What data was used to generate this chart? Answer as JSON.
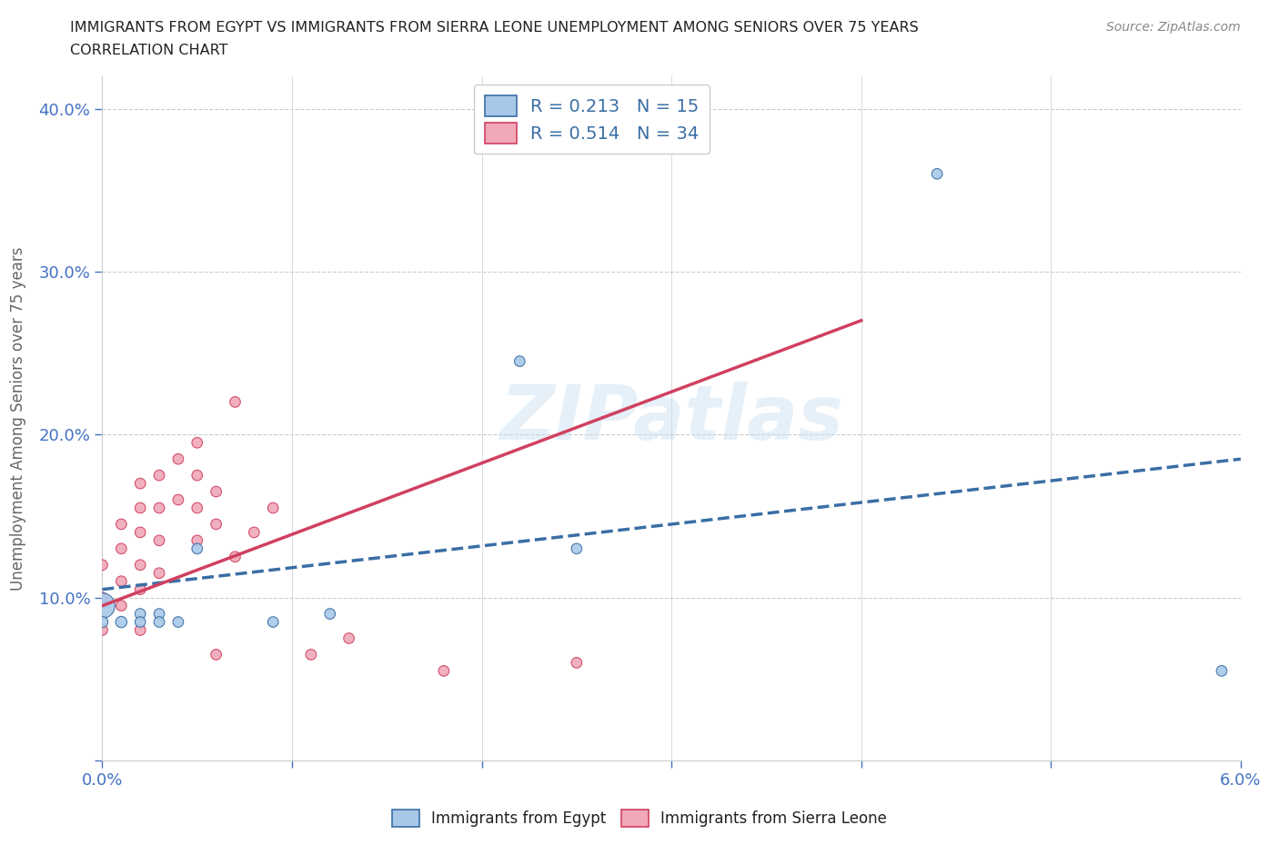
{
  "title_line1": "IMMIGRANTS FROM EGYPT VS IMMIGRANTS FROM SIERRA LEONE UNEMPLOYMENT AMONG SENIORS OVER 75 YEARS",
  "title_line2": "CORRELATION CHART",
  "source": "Source: ZipAtlas.com",
  "ylabel": "Unemployment Among Seniors over 75 years",
  "xlim": [
    0.0,
    0.06
  ],
  "ylim": [
    0.0,
    0.42
  ],
  "xticks": [
    0.0,
    0.01,
    0.02,
    0.03,
    0.04,
    0.05,
    0.06
  ],
  "xticklabels": [
    "0.0%",
    "",
    "",
    "",
    "",
    "",
    "6.0%"
  ],
  "yticks": [
    0.0,
    0.1,
    0.2,
    0.3,
    0.4
  ],
  "yticklabels": [
    "",
    "10.0%",
    "20.0%",
    "30.0%",
    "40.0%"
  ],
  "egypt_R": 0.213,
  "egypt_N": 15,
  "sierra_R": 0.514,
  "sierra_N": 34,
  "egypt_color": "#a8c8e8",
  "egypt_line_color": "#3a6ea5",
  "egypt_trendline_color": "#a0b8d8",
  "sierra_color": "#f0a8b8",
  "sierra_line_color": "#d04060",
  "watermark": "ZIPatlas",
  "egypt_x": [
    0.0,
    0.0,
    0.001,
    0.002,
    0.002,
    0.003,
    0.003,
    0.004,
    0.005,
    0.009,
    0.012,
    0.022,
    0.025,
    0.044,
    0.059
  ],
  "egypt_y": [
    0.095,
    0.085,
    0.085,
    0.09,
    0.085,
    0.09,
    0.085,
    0.085,
    0.13,
    0.085,
    0.09,
    0.245,
    0.13,
    0.36,
    0.055
  ],
  "egypt_size": [
    400,
    80,
    80,
    70,
    70,
    70,
    70,
    70,
    70,
    70,
    70,
    70,
    70,
    70,
    70
  ],
  "sierra_x": [
    0.0,
    0.0,
    0.0,
    0.001,
    0.001,
    0.001,
    0.001,
    0.002,
    0.002,
    0.002,
    0.002,
    0.002,
    0.002,
    0.003,
    0.003,
    0.003,
    0.003,
    0.004,
    0.004,
    0.005,
    0.005,
    0.005,
    0.005,
    0.006,
    0.006,
    0.006,
    0.007,
    0.007,
    0.008,
    0.009,
    0.011,
    0.013,
    0.018,
    0.025
  ],
  "sierra_y": [
    0.12,
    0.1,
    0.08,
    0.145,
    0.13,
    0.11,
    0.095,
    0.17,
    0.155,
    0.14,
    0.12,
    0.105,
    0.08,
    0.175,
    0.155,
    0.135,
    0.115,
    0.185,
    0.16,
    0.195,
    0.175,
    0.155,
    0.135,
    0.165,
    0.145,
    0.065,
    0.22,
    0.125,
    0.14,
    0.155,
    0.065,
    0.075,
    0.055,
    0.06
  ],
  "sierra_size": [
    70,
    70,
    70,
    70,
    70,
    70,
    70,
    70,
    70,
    70,
    70,
    70,
    70,
    70,
    70,
    70,
    70,
    70,
    70,
    70,
    70,
    70,
    70,
    70,
    70,
    70,
    70,
    70,
    70,
    70,
    70,
    70,
    70,
    70
  ]
}
